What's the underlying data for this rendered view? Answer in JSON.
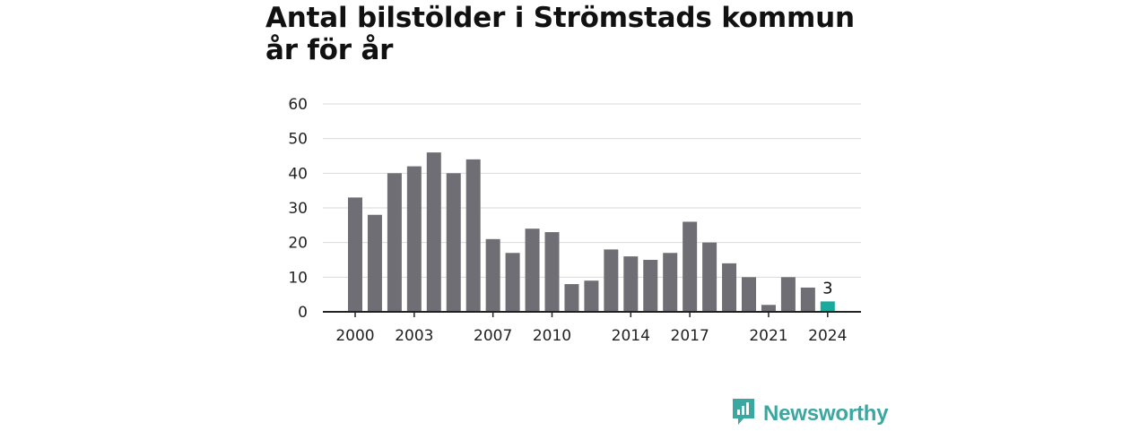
{
  "chart_data": {
    "type": "bar",
    "title": "Antal bilstölder i Strömstads kommun år för år",
    "categories": [
      "2000",
      "2001",
      "2002",
      "2003",
      "2004",
      "2005",
      "2006",
      "2007",
      "2008",
      "2009",
      "2010",
      "2011",
      "2012",
      "2013",
      "2014",
      "2015",
      "2016",
      "2017",
      "2018",
      "2019",
      "2020",
      "2021",
      "2022",
      "2023",
      "2024"
    ],
    "values": [
      33,
      28,
      40,
      42,
      46,
      40,
      44,
      21,
      17,
      24,
      23,
      8,
      9,
      18,
      16,
      15,
      17,
      26,
      20,
      14,
      10,
      2,
      10,
      7,
      3
    ],
    "x_tick_labels": [
      "2000",
      "2003",
      "2007",
      "2010",
      "2014",
      "2017",
      "2021",
      "2024"
    ],
    "y_ticks": [
      0,
      10,
      20,
      30,
      40,
      50,
      60
    ],
    "ylim": [
      0,
      60
    ],
    "grid": true,
    "highlight_category": "2024",
    "highlight_label": "3",
    "colors": {
      "bar": "#6f6e74",
      "highlight": "#1aaa9b",
      "grid": "#d9d9d9",
      "axis": "#222222"
    }
  },
  "brand": {
    "name": "Newsworthy",
    "icon": "newsworthy-logo-icon",
    "color": "#3aa8a0"
  }
}
